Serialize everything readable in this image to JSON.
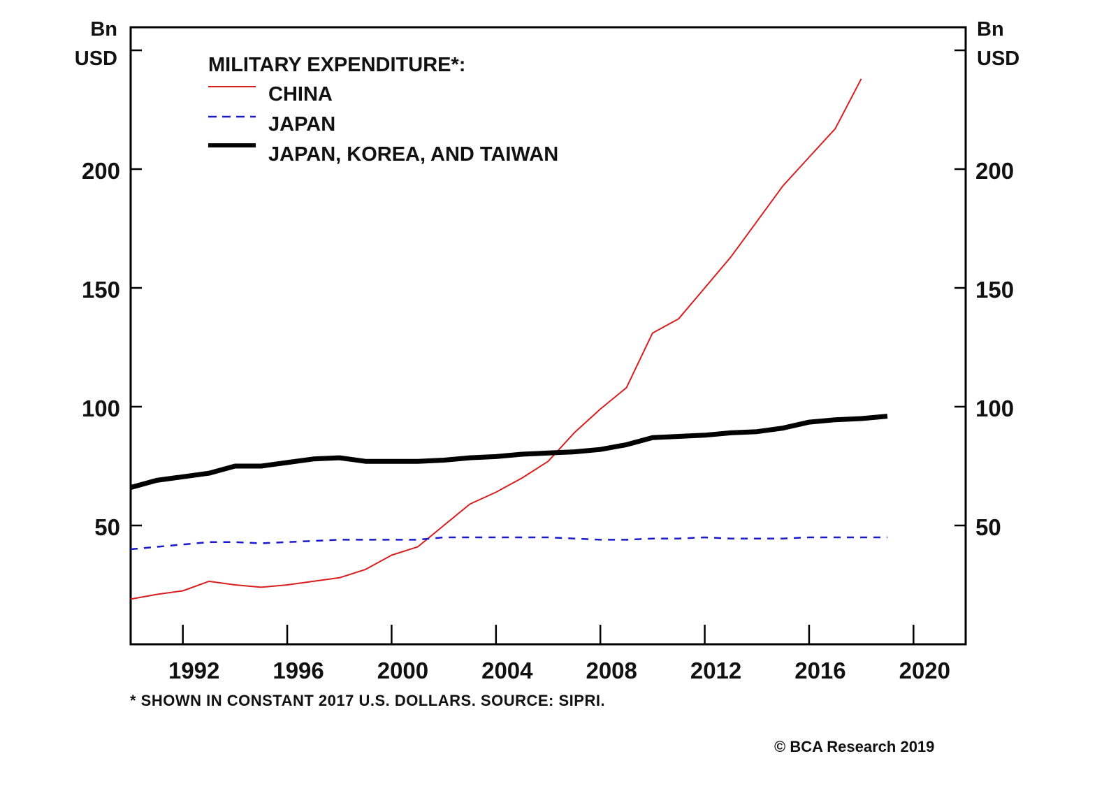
{
  "chart_data": {
    "type": "line",
    "title": "MILITARY EXPENDITURE*:",
    "ylabel_left": [
      "Bn",
      "USD"
    ],
    "ylabel_right": [
      "Bn",
      "USD"
    ],
    "xlabel": "",
    "xlim": [
      1990,
      2022
    ],
    "ylim": [
      0,
      260
    ],
    "x_ticks": [
      1992,
      1996,
      2000,
      2004,
      2008,
      2012,
      2016,
      2020
    ],
    "x_tick_labels": [
      "1992",
      "1996",
      "2000",
      "2004",
      "2008",
      "2012",
      "2016",
      "2020"
    ],
    "y_ticks": [
      50,
      100,
      150,
      200,
      250
    ],
    "y_tick_labels": [
      "50",
      "100",
      "150",
      "200",
      ""
    ],
    "grid": false,
    "legend_position": "top-left",
    "series": [
      {
        "name": "CHINA",
        "color": "#d81e1e",
        "style": "solid-thin",
        "x": [
          1990,
          1991,
          1992,
          1993,
          1994,
          1995,
          1996,
          1997,
          1998,
          1999,
          2000,
          2001,
          2002,
          2003,
          2004,
          2005,
          2006,
          2007,
          2008,
          2009,
          2010,
          2011,
          2012,
          2013,
          2014,
          2015,
          2016,
          2017,
          2018
        ],
        "values": [
          19,
          21,
          22.5,
          26.5,
          25,
          24,
          25,
          26.5,
          28,
          31.5,
          37.5,
          41,
          50,
          59,
          64,
          70,
          77,
          89,
          99,
          108,
          131,
          137,
          150,
          163,
          178,
          193,
          205,
          217,
          238
        ]
      },
      {
        "name": "JAPAN",
        "color": "#1a1acc",
        "style": "dashed",
        "x": [
          1990,
          1991,
          1992,
          1993,
          1994,
          1995,
          1996,
          1997,
          1998,
          1999,
          2000,
          2001,
          2002,
          2003,
          2004,
          2005,
          2006,
          2007,
          2008,
          2009,
          2010,
          2011,
          2012,
          2013,
          2014,
          2015,
          2016,
          2017,
          2018,
          2019
        ],
        "values": [
          40,
          41,
          42,
          43,
          43,
          42.5,
          43,
          43.5,
          44,
          44,
          44,
          44,
          45,
          45,
          45,
          45,
          45,
          44.5,
          44,
          44,
          44.5,
          44.5,
          45,
          44.5,
          44.5,
          44.5,
          45,
          45,
          45,
          45
        ]
      },
      {
        "name": "JAPAN, KOREA, AND TAIWAN",
        "color": "#000000",
        "style": "solid-thick",
        "x": [
          1990,
          1991,
          1992,
          1993,
          1994,
          1995,
          1996,
          1997,
          1998,
          1999,
          2000,
          2001,
          2002,
          2003,
          2004,
          2005,
          2006,
          2007,
          2008,
          2009,
          2010,
          2011,
          2012,
          2013,
          2014,
          2015,
          2016,
          2017,
          2018,
          2019
        ],
        "values": [
          66,
          69,
          70.5,
          72,
          75,
          75,
          76.5,
          78,
          78.5,
          77,
          77,
          77,
          77.5,
          78.5,
          79,
          80,
          80.5,
          81,
          82,
          84,
          87,
          87.5,
          88,
          89,
          89.5,
          91,
          93.5,
          94.5,
          95,
          96
        ]
      }
    ],
    "footnote": "* SHOWN IN CONSTANT 2017 U.S. DOLLARS. SOURCE: SIPRI.",
    "credit": "© BCA Research 2019"
  }
}
